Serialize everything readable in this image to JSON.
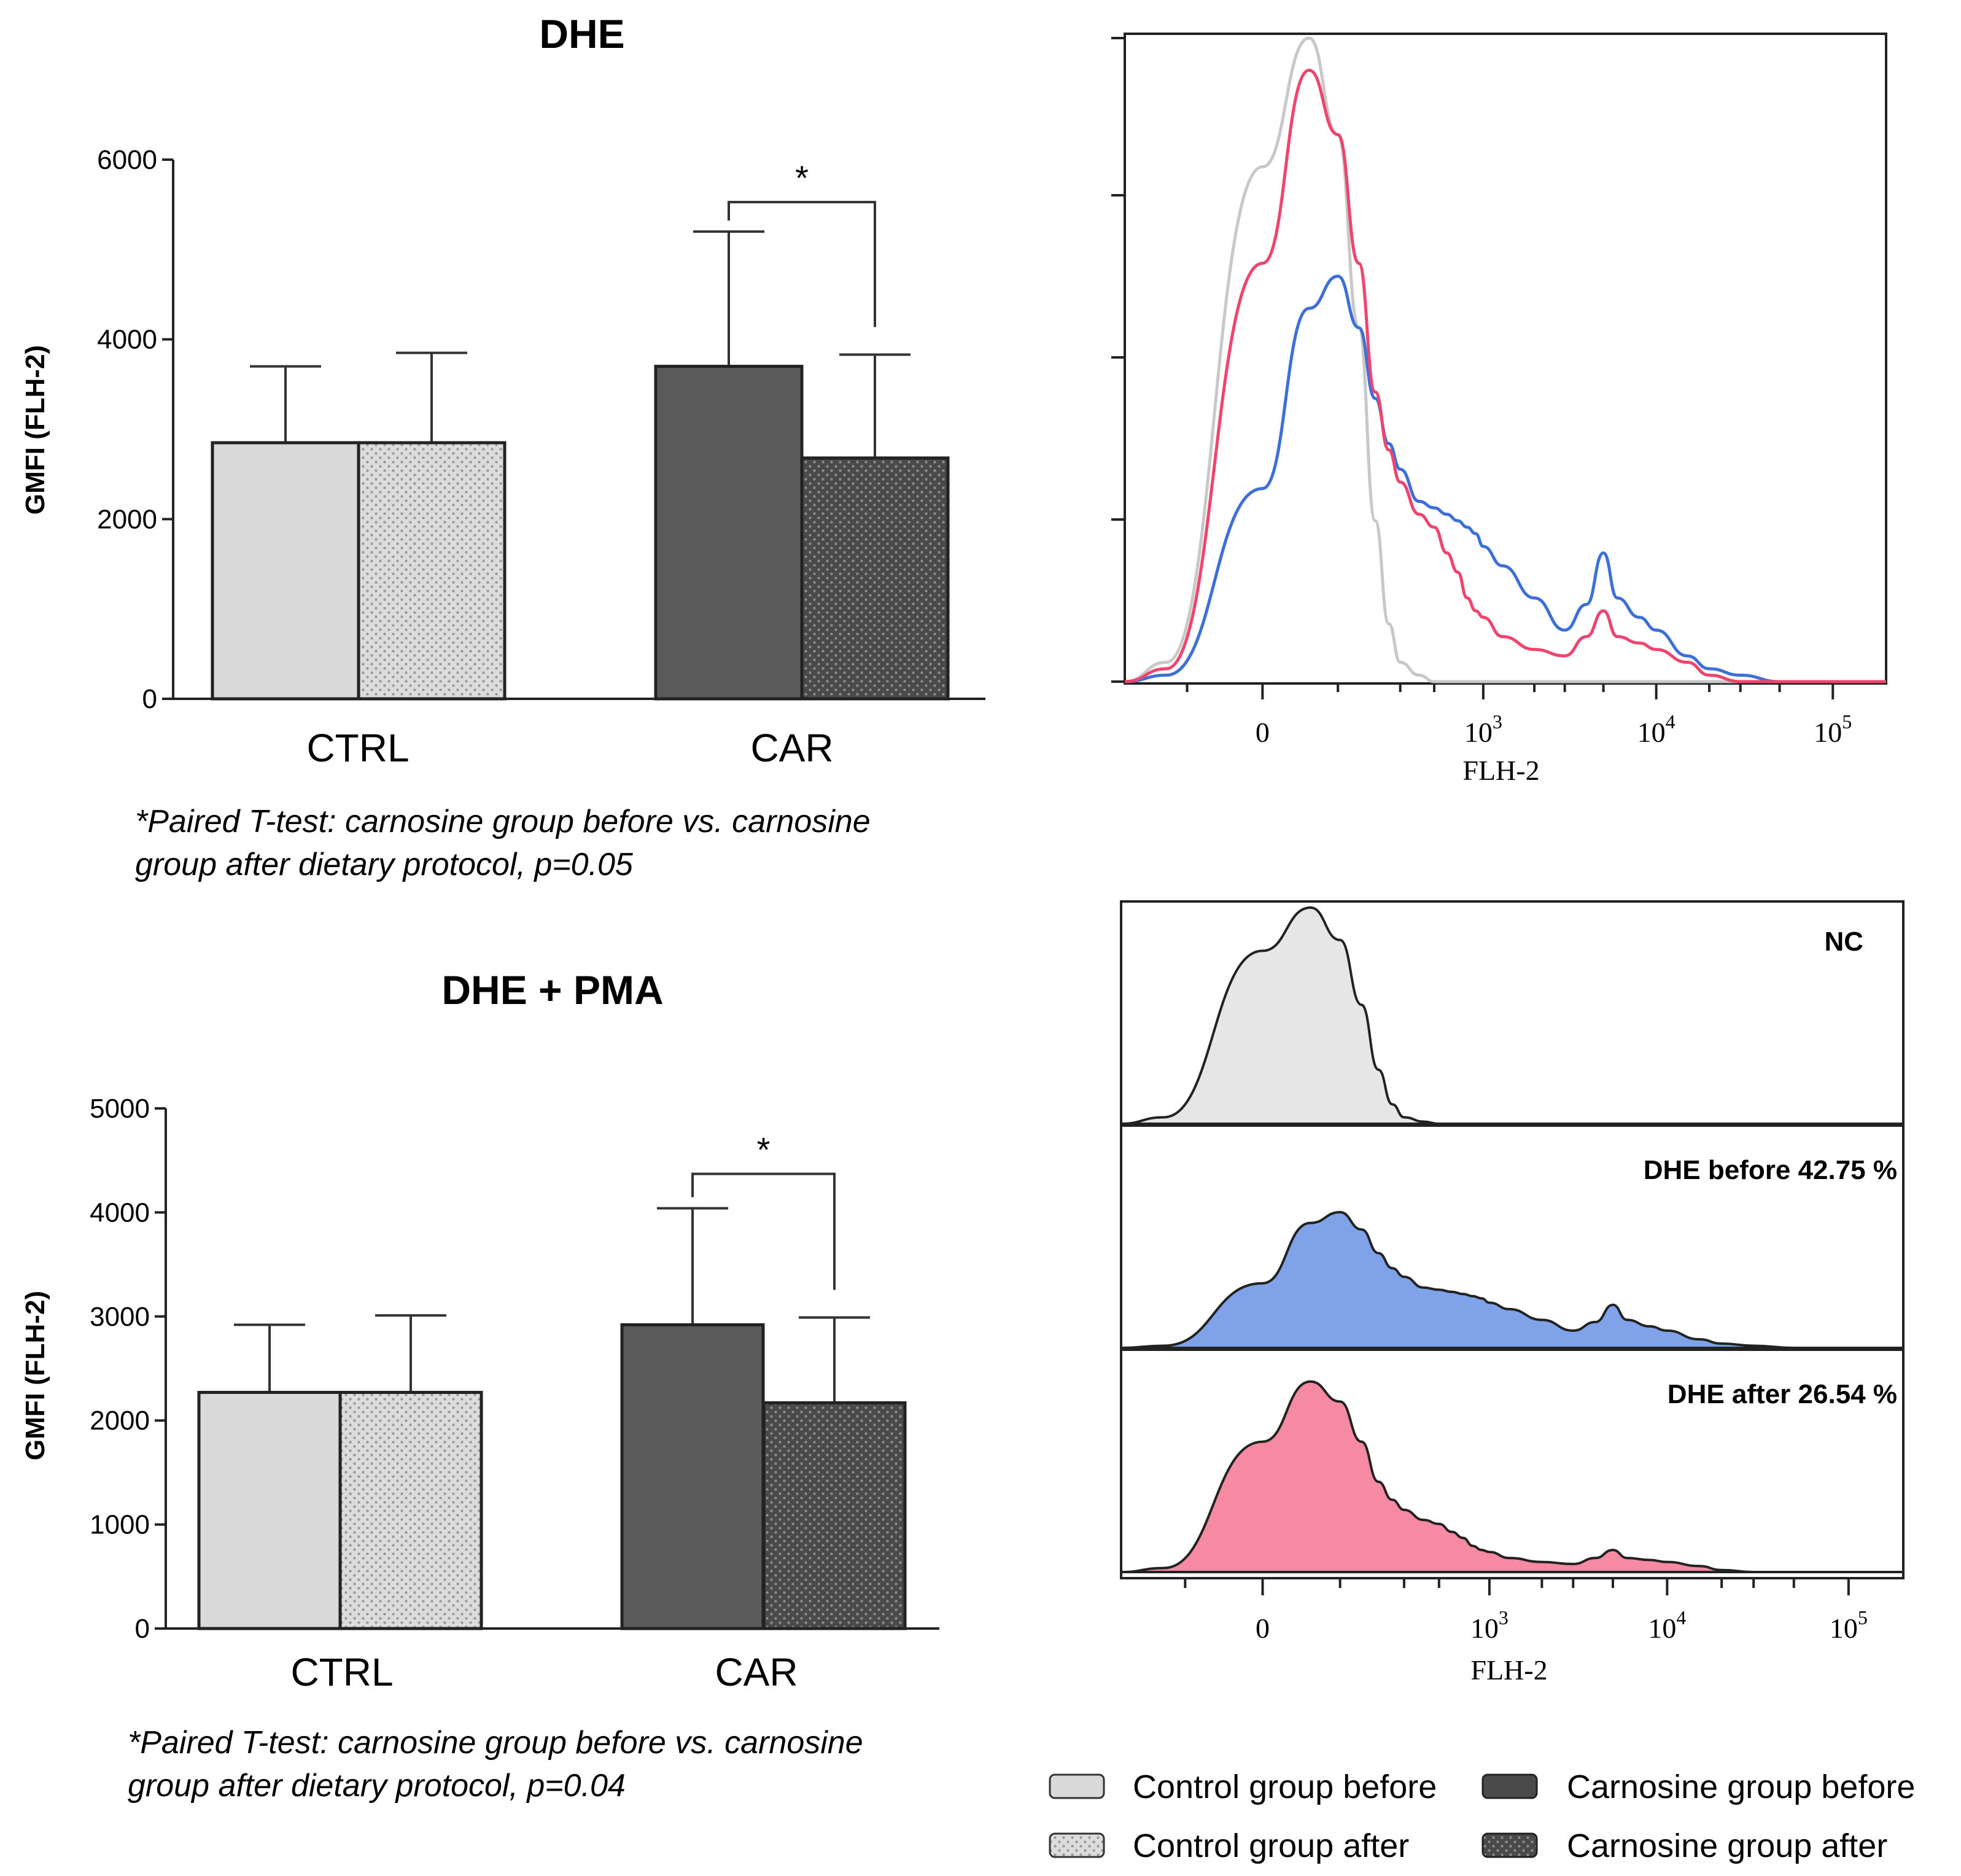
{
  "colors": {
    "control_before": "#d9d9d9",
    "control_after": "#dcdcdc",
    "carnosine_before": "#5a5a5a",
    "carnosine_after": "#4a4a4a",
    "hist_nc": "#c8c8c8",
    "hist_before": "#3d6fd9",
    "hist_after": "#f0446e",
    "fill_nc": "#e6e6e6",
    "fill_before": "#7fa2e8",
    "fill_after": "#f78aa3"
  },
  "legend": {
    "control_before": "Control group before",
    "control_after": "Control group after",
    "carnosine_before": "Carnosine group before",
    "carnosine_after": "Carnosine group after"
  },
  "chart_data": [
    {
      "type": "bar",
      "title": "DHE",
      "ylabel": "GMFI (FLH-2)",
      "xlabel": "",
      "categories": [
        "CTRL",
        "CAR"
      ],
      "ylim": [
        0,
        6000
      ],
      "yticks": [
        0,
        2000,
        4000,
        6000
      ],
      "series": [
        {
          "name": "Control group before",
          "values": [
            2850,
            null
          ],
          "err": [
            850,
            null
          ]
        },
        {
          "name": "Control group after",
          "values": [
            2850,
            null
          ],
          "err": [
            1000,
            null
          ]
        },
        {
          "name": "Carnosine group before",
          "values": [
            null,
            3700
          ],
          "err": [
            null,
            1500
          ]
        },
        {
          "name": "Carnosine group after",
          "values": [
            null,
            2680
          ],
          "err": [
            null,
            1150
          ]
        }
      ],
      "annotation": {
        "label": "*",
        "between": [
          "Carnosine group before",
          "Carnosine group after"
        ]
      },
      "note_line1": "*Paired T-test: carnosine group before vs. carnosine",
      "note_line2": "group after dietary protocol, p=0.05"
    },
    {
      "type": "bar",
      "title": "DHE + PMA",
      "ylabel": "GMFI (FLH-2)",
      "xlabel": "",
      "categories": [
        "CTRL",
        "CAR"
      ],
      "ylim": [
        0,
        5000
      ],
      "yticks": [
        0,
        1000,
        2000,
        3000,
        4000,
        5000
      ],
      "series": [
        {
          "name": "Control group before",
          "values": [
            2270,
            null
          ],
          "err": [
            650,
            null
          ]
        },
        {
          "name": "Control group after",
          "values": [
            2270,
            null
          ],
          "err": [
            740,
            null
          ]
        },
        {
          "name": "Carnosine group before",
          "values": [
            null,
            2920
          ],
          "err": [
            null,
            1120
          ]
        },
        {
          "name": "Carnosine group after",
          "values": [
            null,
            2170
          ],
          "err": [
            null,
            820
          ]
        }
      ],
      "annotation": {
        "label": "*",
        "between": [
          "Carnosine group before",
          "Carnosine group after"
        ]
      },
      "note_line1": "*Paired T-test: carnosine group before vs. carnosine",
      "note_line2": "group after dietary protocol, p=0.04"
    },
    {
      "type": "line",
      "title": "",
      "xlabel": "FLH-2",
      "x_ticks": [
        "0",
        "10",
        "10",
        "10"
      ],
      "x_tick_exponents": [
        "",
        "3",
        "4",
        "5"
      ],
      "x": [
        -300,
        -150,
        0,
        50,
        100,
        150,
        200,
        250,
        300,
        400,
        500,
        600,
        700,
        800,
        900,
        1000,
        1300,
        2000,
        3000,
        4000,
        5000,
        6000,
        8000,
        10000,
        15000,
        20000,
        30000,
        50000,
        200000
      ],
      "series": [
        {
          "name": "NC",
          "values": [
            0,
            3,
            80,
            100,
            85,
            55,
            25,
            9,
            3,
            1,
            0,
            0,
            0,
            0,
            0,
            0,
            0,
            0,
            0,
            0,
            0,
            0,
            0,
            0,
            0,
            0,
            0,
            0,
            0
          ]
        },
        {
          "name": "DHE before",
          "values": [
            0,
            1,
            30,
            58,
            63,
            55,
            44,
            37,
            33,
            28,
            27,
            26,
            25,
            24,
            23,
            21,
            18,
            13,
            8,
            12,
            20,
            13,
            10,
            8,
            4,
            2,
            1,
            0,
            0
          ]
        },
        {
          "name": "DHE after",
          "values": [
            0,
            2,
            65,
            95,
            85,
            65,
            45,
            36,
            31,
            26,
            24,
            20,
            17,
            13,
            11,
            10,
            7,
            5,
            4,
            7,
            11,
            7,
            6,
            5,
            3,
            1,
            0,
            0,
            0
          ]
        }
      ]
    },
    {
      "type": "area",
      "title": "",
      "xlabel": "FLH-2",
      "x_ticks": [
        "0",
        "10",
        "10",
        "10"
      ],
      "x_tick_exponents": [
        "",
        "3",
        "4",
        "5"
      ],
      "panels": [
        {
          "label": "NC",
          "percent": ""
        },
        {
          "label": "DHE before",
          "percent": "42.75 %"
        },
        {
          "label": "DHE after",
          "percent": "26.54 %"
        }
      ]
    }
  ]
}
